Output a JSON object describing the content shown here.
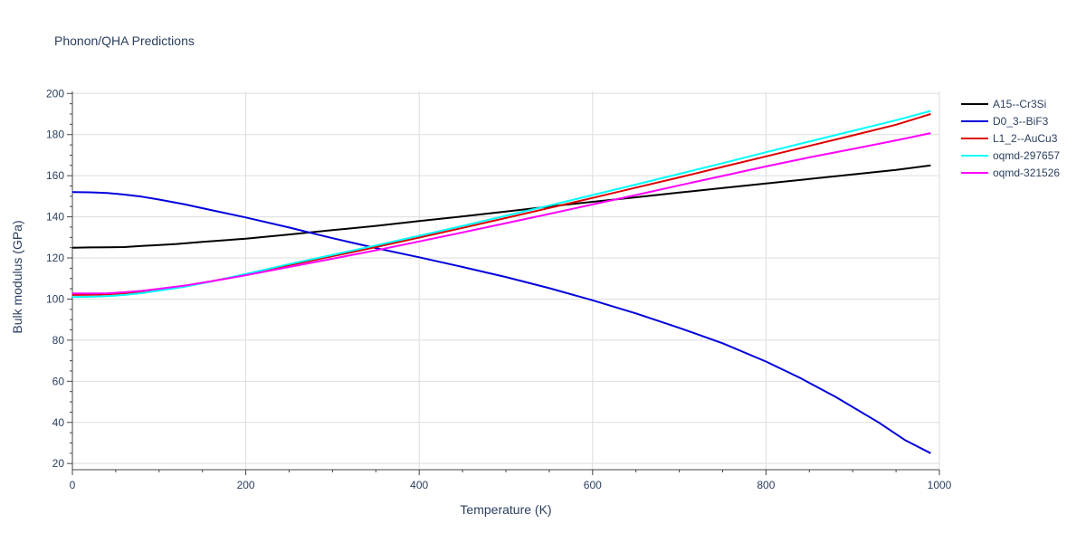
{
  "chart_data": {
    "type": "line",
    "title": "Phonon/QHA Predictions",
    "xlabel": "Temperature (K)",
    "ylabel": "Bulk modulus (GPa)",
    "xlim": [
      0,
      1000
    ],
    "ylim": [
      17,
      201
    ],
    "xticks": [
      0,
      200,
      400,
      600,
      800,
      1000
    ],
    "yticks": [
      20,
      40,
      60,
      80,
      100,
      120,
      140,
      160,
      180,
      200
    ],
    "grid": true,
    "legend_position": "top-right",
    "series": [
      {
        "name": "A15--Cr3Si",
        "color": "#000000",
        "x": [
          0,
          20,
          40,
          60,
          80,
          100,
          120,
          150,
          200,
          250,
          300,
          350,
          400,
          450,
          500,
          550,
          600,
          650,
          700,
          750,
          800,
          850,
          900,
          950,
          990
        ],
        "y": [
          125,
          125.1,
          125.2,
          125.3,
          125.8,
          126.3,
          126.8,
          127.8,
          129.4,
          131.4,
          133.5,
          135.6,
          137.9,
          140.2,
          142.6,
          145.0,
          147.3,
          149.5,
          151.8,
          154.0,
          156.2,
          158.4,
          160.6,
          162.8,
          165.0
        ]
      },
      {
        "name": "D0_3--BiF3",
        "color": "#0000dd",
        "x": [
          0,
          20,
          40,
          60,
          80,
          100,
          130,
          160,
          200,
          250,
          300,
          350,
          400,
          450,
          500,
          550,
          600,
          650,
          700,
          750,
          800,
          840,
          880,
          930,
          960,
          990
        ],
        "y": [
          152,
          151.9,
          151.6,
          150.8,
          149.8,
          148.4,
          146.0,
          143.3,
          139.7,
          134.8,
          129.6,
          124.8,
          120.3,
          115.6,
          110.7,
          105.3,
          99.4,
          93.0,
          86.0,
          78.5,
          69.6,
          61.5,
          52.5,
          40.0,
          31.5,
          25.0
        ]
      },
      {
        "name": "L1_2--AuCu3",
        "color": "#dd0000",
        "x": [
          0,
          20,
          40,
          60,
          80,
          100,
          130,
          160,
          200,
          250,
          300,
          350,
          400,
          450,
          500,
          550,
          600,
          650,
          700,
          750,
          800,
          850,
          900,
          950,
          990
        ],
        "y": [
          102.0,
          102.1,
          102.3,
          102.8,
          103.6,
          104.7,
          106.4,
          108.6,
          112.0,
          116.5,
          120.8,
          125.3,
          129.9,
          134.6,
          139.4,
          144.3,
          149.2,
          154.2,
          159.2,
          164.3,
          169.4,
          174.5,
          179.6,
          184.8,
          190.0
        ]
      },
      {
        "name": "oqmd-297657",
        "color": "#00ffff",
        "x": [
          0,
          20,
          40,
          60,
          80,
          100,
          130,
          160,
          200,
          250,
          300,
          350,
          400,
          450,
          500,
          550,
          600,
          650,
          700,
          750,
          800,
          850,
          900,
          950,
          990
        ],
        "y": [
          101.0,
          101.1,
          101.4,
          102.0,
          102.9,
          104.1,
          106.0,
          108.5,
          112.2,
          117.0,
          121.5,
          126.1,
          130.8,
          135.6,
          140.5,
          145.5,
          150.6,
          155.7,
          160.9,
          166.1,
          171.4,
          176.6,
          181.8,
          187.0,
          191.5
        ]
      },
      {
        "name": "oqmd-321526",
        "color": "#ff00ff",
        "x": [
          0,
          20,
          40,
          60,
          80,
          100,
          130,
          160,
          200,
          250,
          300,
          350,
          400,
          450,
          500,
          550,
          600,
          650,
          700,
          750,
          800,
          850,
          900,
          950,
          990
        ],
        "y": [
          102.7,
          102.7,
          102.8,
          103.3,
          104.0,
          105.0,
          106.6,
          108.6,
          111.6,
          115.6,
          119.6,
          123.7,
          128.0,
          132.4,
          136.9,
          141.4,
          146.0,
          150.6,
          155.3,
          159.9,
          164.5,
          168.9,
          173.0,
          177.2,
          180.7
        ]
      }
    ]
  }
}
